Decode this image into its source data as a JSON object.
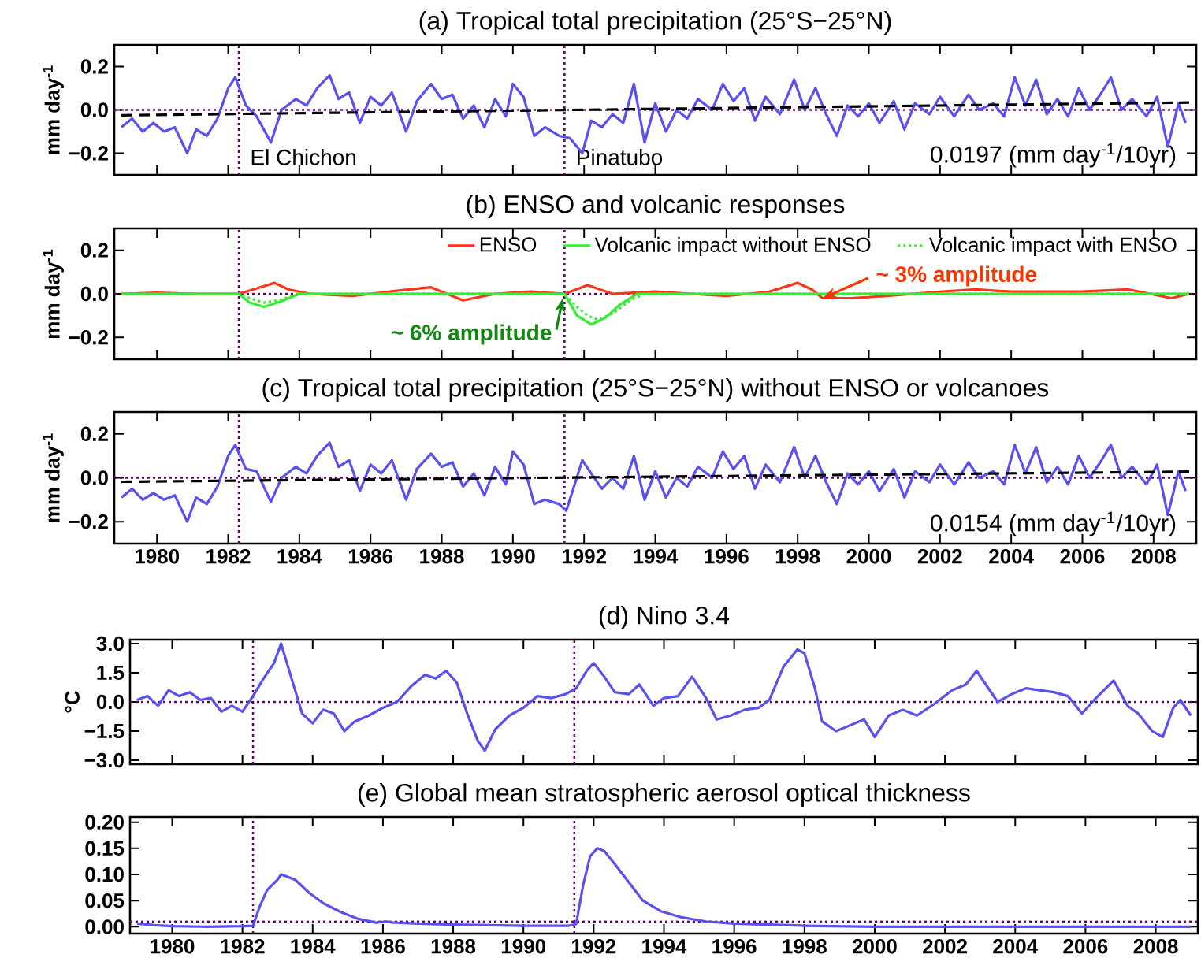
{
  "chart_data": [
    {
      "type": "line",
      "title": "(a) Tropical total precipitation (25°S−25°N)",
      "ylabel": "mm day$^{-1}$",
      "xlim": [
        1978.8,
        2009.2
      ],
      "ylim": [
        -0.3,
        0.3
      ],
      "xticks": [
        1980,
        1982,
        1984,
        1986,
        1988,
        1990,
        1992,
        1994,
        1996,
        1998,
        2000,
        2002,
        2004,
        2006,
        2008
      ],
      "yticks": [
        {
          "value": -0.2,
          "label": "−0.2"
        },
        {
          "value": 0,
          "label": "0.0"
        },
        {
          "value": 0.2,
          "label": "0.2"
        }
      ],
      "tick_labels": "y",
      "series": [
        {
          "color": "#5a50f0",
          "x": [
            1979.0,
            1979.3,
            1979.6,
            1979.9,
            1980.2,
            1980.5,
            1980.85,
            1981.1,
            1981.4,
            1981.7,
            1982.0,
            1982.2,
            1982.5,
            1982.8,
            1983.2,
            1983.5,
            1983.9,
            1984.2,
            1984.5,
            1984.85,
            1985.1,
            1985.4,
            1985.7,
            1986.0,
            1986.3,
            1986.6,
            1987.0,
            1987.3,
            1987.7,
            1988.0,
            1988.3,
            1988.6,
            1988.9,
            1989.2,
            1989.5,
            1989.8,
            1990.0,
            1990.3,
            1990.6,
            1990.9,
            1991.3,
            1991.6,
            1991.95,
            1992.2,
            1992.5,
            1992.8,
            1993.1,
            1993.4,
            1993.7,
            1994.0,
            1994.3,
            1994.6,
            1994.9,
            1995.2,
            1995.6,
            1995.9,
            1996.2,
            1996.5,
            1996.8,
            1997.1,
            1997.5,
            1997.9,
            1998.2,
            1998.5,
            1998.8,
            1999.1,
            1999.4,
            1999.7,
            2000.0,
            2000.3,
            2000.7,
            2001.0,
            2001.3,
            2001.7,
            2002.0,
            2002.4,
            2002.8,
            2003.1,
            2003.5,
            2003.8,
            2004.1,
            2004.4,
            2004.7,
            2005.0,
            2005.3,
            2005.6,
            2005.9,
            2006.2,
            2006.5,
            2006.8,
            2007.1,
            2007.4,
            2007.8,
            2008.1,
            2008.4,
            2008.7,
            2008.9
          ],
          "values": [
            -0.08,
            -0.04,
            -0.1,
            -0.06,
            -0.1,
            -0.08,
            -0.2,
            -0.09,
            -0.12,
            -0.04,
            0.1,
            0.15,
            0.02,
            -0.03,
            -0.15,
            0.0,
            0.05,
            0.02,
            0.1,
            0.16,
            0.05,
            0.08,
            -0.06,
            0.06,
            0.02,
            0.08,
            -0.1,
            0.04,
            0.12,
            0.05,
            0.07,
            -0.04,
            0.02,
            -0.08,
            0.05,
            -0.03,
            0.12,
            0.06,
            -0.12,
            -0.08,
            -0.12,
            -0.13,
            -0.2,
            -0.05,
            -0.08,
            -0.02,
            -0.06,
            0.12,
            -0.15,
            0.03,
            -0.1,
            0.0,
            -0.04,
            0.05,
            0.0,
            0.12,
            0.04,
            0.1,
            -0.05,
            0.06,
            -0.02,
            0.14,
            0.0,
            0.1,
            -0.02,
            -0.12,
            0.02,
            -0.03,
            0.03,
            -0.06,
            0.04,
            -0.09,
            0.03,
            -0.02,
            0.06,
            -0.03,
            0.07,
            0.0,
            0.03,
            -0.03,
            0.15,
            0.02,
            0.14,
            -0.02,
            0.05,
            -0.03,
            0.1,
            0.0,
            0.07,
            0.15,
            0.0,
            0.05,
            -0.03,
            0.06,
            -0.17,
            0.03,
            -0.06
          ]
        },
        {
          "type": "line",
          "color": "#000000",
          "line_style": "dashed",
          "x": [
            1979,
            2009
          ],
          "values": [
            -0.025,
            0.034
          ]
        }
      ],
      "ref_lines": [
        {
          "axis": "x",
          "value": 1982.3,
          "label": "El Chichon",
          "color": "#660066",
          "line_style": "dotted"
        },
        {
          "axis": "x",
          "value": 1991.45,
          "label": "Pinatubo",
          "color": "#660066",
          "line_style": "dotted"
        },
        {
          "axis": "y",
          "value": 0,
          "color": "#660066",
          "line_style": "dotted"
        }
      ],
      "annotations": [
        "0.0197 (mm day$^{-1}$/10yr)"
      ]
    },
    {
      "type": "line",
      "title": "(b) ENSO and volcanic responses",
      "ylabel": "mm day$^{-1}$",
      "xlim": [
        1978.8,
        2009.2
      ],
      "ylim": [
        -0.3,
        0.3
      ],
      "xticks": [
        1980,
        1982,
        1984,
        1986,
        1988,
        1990,
        1992,
        1994,
        1996,
        1998,
        2000,
        2002,
        2004,
        2006,
        2008
      ],
      "yticks": [
        {
          "value": -0.2,
          "label": "−0.2"
        },
        {
          "value": 0,
          "label": "0.0"
        },
        {
          "value": 0.2,
          "label": "0.2"
        }
      ],
      "tick_labels": "y",
      "legend": "top right",
      "series": [
        {
          "name": "ENSO",
          "color": "#ff3319",
          "line_style": "solid",
          "x": [
            1979,
            1980,
            1981,
            1982.3,
            1982.9,
            1983.3,
            1983.7,
            1984.3,
            1985.5,
            1986.5,
            1987.7,
            1988.6,
            1989.5,
            1990.5,
            1991.45,
            1992.1,
            1992.8,
            1994.0,
            1995.0,
            1996.0,
            1997.2,
            1998.0,
            1998.4,
            1998.7,
            1999.5,
            2000.5,
            2002.0,
            2003.0,
            2004.0,
            2005.0,
            2006.0,
            2007.3,
            2008.5,
            2009.0
          ],
          "values": [
            0,
            0.005,
            0,
            0,
            0.03,
            0.05,
            0.02,
            0,
            -0.01,
            0.01,
            0.03,
            -0.03,
            0,
            0.01,
            0,
            0.04,
            0,
            0.01,
            0,
            -0.01,
            0.01,
            0.05,
            0.02,
            -0.02,
            -0.02,
            -0.01,
            0.01,
            0.02,
            0.01,
            0.01,
            0.01,
            0.02,
            -0.02,
            0
          ]
        },
        {
          "name": "Volcanic impact without ENSO",
          "color": "#33ee33",
          "line_style": "solid",
          "x": [
            1979,
            1982.3,
            1982.6,
            1983.0,
            1983.4,
            1984.0,
            1991.45,
            1991.8,
            1992.2,
            1992.6,
            1993.0,
            1993.5,
            2009
          ],
          "values": [
            0,
            0,
            -0.04,
            -0.06,
            -0.04,
            0,
            0,
            -0.1,
            -0.14,
            -0.11,
            -0.05,
            0,
            0
          ]
        },
        {
          "name": "Volcanic impact with ENSO",
          "color": "#33ee33",
          "line_style": "dotted",
          "x": [
            1979,
            1982.3,
            1982.6,
            1983.0,
            1983.4,
            1984.0,
            1991.45,
            1991.8,
            1992.1,
            1992.4,
            1992.8,
            1993.3,
            1993.7,
            2009
          ],
          "values": [
            0,
            0,
            -0.02,
            -0.04,
            -0.03,
            0,
            0,
            -0.06,
            -0.1,
            -0.12,
            -0.09,
            -0.03,
            0,
            0
          ]
        }
      ],
      "ref_lines": [
        {
          "axis": "x",
          "value": 1982.3,
          "color": "#660066",
          "line_style": "dotted"
        },
        {
          "axis": "x",
          "value": 1991.45,
          "color": "#660066",
          "line_style": "dotted"
        },
        {
          "axis": "y",
          "value": 0,
          "color": "#660066",
          "line_style": "dotted"
        }
      ],
      "annotations": [
        {
          "text": "~ 6% amplitude",
          "x": 1991.4,
          "y": -0.02
        },
        {
          "text": "~ 3% amplitude",
          "x": 1998.7,
          "y": -0.02
        }
      ]
    },
    {
      "type": "line",
      "title": "(c) Tropical total precipitation (25°S−25°N) without ENSO or volcanoes",
      "ylabel": "mm day$^{-1}$",
      "xlim": [
        1978.8,
        2009.2
      ],
      "ylim": [
        -0.3,
        0.3
      ],
      "xticks": [
        1980,
        1982,
        1984,
        1986,
        1988,
        1990,
        1992,
        1994,
        1996,
        1998,
        2000,
        2002,
        2004,
        2006,
        2008
      ],
      "yticks": [
        {
          "value": -0.2,
          "label": "−0.2"
        },
        {
          "value": 0,
          "label": "0.0"
        },
        {
          "value": 0.2,
          "label": "0.2"
        }
      ],
      "series": [
        {
          "color": "#5a50f0",
          "x": [
            1979.0,
            1979.3,
            1979.6,
            1979.9,
            1980.2,
            1980.5,
            1980.85,
            1981.1,
            1981.4,
            1981.7,
            1982.0,
            1982.2,
            1982.5,
            1982.8,
            1983.2,
            1983.5,
            1983.9,
            1984.2,
            1984.5,
            1984.85,
            1985.1,
            1985.4,
            1985.7,
            1986.0,
            1986.3,
            1986.6,
            1987.0,
            1987.3,
            1987.7,
            1988.0,
            1988.3,
            1988.6,
            1988.9,
            1989.2,
            1989.5,
            1989.8,
            1990.0,
            1990.3,
            1990.6,
            1990.9,
            1991.3,
            1991.5,
            1991.95,
            1992.2,
            1992.5,
            1992.8,
            1993.1,
            1993.4,
            1993.7,
            1994.0,
            1994.3,
            1994.6,
            1994.9,
            1995.2,
            1995.6,
            1995.9,
            1996.2,
            1996.5,
            1996.8,
            1997.1,
            1997.5,
            1997.9,
            1998.2,
            1998.5,
            1998.8,
            1999.1,
            1999.4,
            1999.7,
            2000.0,
            2000.3,
            2000.7,
            2001.0,
            2001.3,
            2001.7,
            2002.0,
            2002.4,
            2002.8,
            2003.1,
            2003.5,
            2003.8,
            2004.1,
            2004.4,
            2004.7,
            2005.0,
            2005.3,
            2005.6,
            2005.9,
            2006.2,
            2006.5,
            2006.8,
            2007.1,
            2007.4,
            2007.8,
            2008.1,
            2008.4,
            2008.7,
            2008.9
          ],
          "values": [
            -0.09,
            -0.05,
            -0.1,
            -0.07,
            -0.1,
            -0.08,
            -0.2,
            -0.09,
            -0.12,
            -0.04,
            0.1,
            0.15,
            0.04,
            0.03,
            -0.11,
            0.0,
            0.05,
            0.02,
            0.1,
            0.16,
            0.05,
            0.08,
            -0.06,
            0.06,
            0.02,
            0.08,
            -0.1,
            0.04,
            0.11,
            0.05,
            0.07,
            -0.04,
            0.02,
            -0.08,
            0.05,
            -0.03,
            0.12,
            0.06,
            -0.12,
            -0.1,
            -0.12,
            -0.15,
            0.08,
            0.02,
            -0.05,
            0.0,
            -0.05,
            0.1,
            -0.1,
            0.03,
            -0.09,
            0.0,
            -0.04,
            0.05,
            0.0,
            0.12,
            0.04,
            0.1,
            -0.05,
            0.06,
            -0.02,
            0.14,
            0.0,
            0.1,
            -0.02,
            -0.12,
            0.02,
            -0.03,
            0.03,
            -0.06,
            0.04,
            -0.09,
            0.03,
            -0.02,
            0.06,
            -0.03,
            0.07,
            0.0,
            0.03,
            -0.03,
            0.15,
            0.02,
            0.14,
            -0.02,
            0.05,
            -0.03,
            0.1,
            0.0,
            0.07,
            0.15,
            0.0,
            0.05,
            -0.03,
            0.06,
            -0.17,
            0.03,
            -0.06
          ]
        },
        {
          "type": "line",
          "color": "#000000",
          "line_style": "dashed",
          "x": [
            1979,
            2009
          ],
          "values": [
            -0.018,
            0.028
          ]
        }
      ],
      "ref_lines": [
        {
          "axis": "x",
          "value": 1982.3,
          "color": "#660066",
          "line_style": "dotted"
        },
        {
          "axis": "x",
          "value": 1991.45,
          "color": "#660066",
          "line_style": "dotted"
        },
        {
          "axis": "y",
          "value": 0,
          "color": "#660066",
          "line_style": "dotted"
        }
      ],
      "annotations": [
        "0.0154 (mm day$^{-1}$/10yr)"
      ]
    },
    {
      "type": "line",
      "title": "(d) Nino 3.4",
      "ylabel": "°C",
      "xlim": [
        1978.8,
        2009.2
      ],
      "ylim": [
        -3.2,
        3.2
      ],
      "xticks": [
        1980,
        1982,
        1984,
        1986,
        1988,
        1990,
        1992,
        1994,
        1996,
        1998,
        2000,
        2002,
        2004,
        2006,
        2008
      ],
      "yticks": [
        {
          "value": -3,
          "label": "−3.0"
        },
        {
          "value": -1.5,
          "label": "−1.5"
        },
        {
          "value": 0,
          "label": "0.0"
        },
        {
          "value": 1.5,
          "label": "1.5"
        },
        {
          "value": 3,
          "label": "3.0"
        }
      ],
      "tick_labels": "y",
      "series": [
        {
          "color": "#5a50f0",
          "x": [
            1979.0,
            1979.3,
            1979.6,
            1979.9,
            1980.2,
            1980.5,
            1980.8,
            1981.1,
            1981.4,
            1981.7,
            1982.0,
            1982.3,
            1982.6,
            1982.9,
            1983.1,
            1983.4,
            1983.7,
            1984.0,
            1984.3,
            1984.6,
            1984.9,
            1985.2,
            1985.6,
            1986.0,
            1986.4,
            1986.8,
            1987.2,
            1987.5,
            1987.8,
            1988.1,
            1988.4,
            1988.7,
            1988.9,
            1989.2,
            1989.6,
            1990.0,
            1990.4,
            1990.8,
            1991.2,
            1991.5,
            1991.8,
            1992.0,
            1992.3,
            1992.6,
            1993.0,
            1993.3,
            1993.7,
            1994.0,
            1994.4,
            1994.8,
            1995.2,
            1995.5,
            1995.9,
            1996.3,
            1996.7,
            1997.0,
            1997.4,
            1997.8,
            1998.0,
            1998.3,
            1998.5,
            1998.9,
            1999.3,
            1999.7,
            2000.0,
            2000.4,
            2000.8,
            2001.2,
            2001.7,
            2002.2,
            2002.6,
            2002.9,
            2003.2,
            2003.5,
            2003.9,
            2004.3,
            2004.7,
            2005.1,
            2005.5,
            2005.9,
            2006.3,
            2006.8,
            2007.2,
            2007.5,
            2007.9,
            2008.2,
            2008.5,
            2008.7,
            2009.0
          ],
          "values": [
            0.1,
            0.3,
            -0.2,
            0.6,
            0.3,
            0.5,
            0.1,
            0.2,
            -0.5,
            -0.2,
            -0.5,
            0.3,
            1.2,
            2.0,
            3.0,
            1.2,
            -0.6,
            -1.1,
            -0.4,
            -0.6,
            -1.5,
            -1.0,
            -0.7,
            -0.3,
            0.0,
            0.8,
            1.4,
            1.2,
            1.6,
            1.0,
            -0.6,
            -2.0,
            -2.5,
            -1.4,
            -0.7,
            -0.3,
            0.3,
            0.2,
            0.4,
            0.7,
            1.6,
            2.0,
            1.3,
            0.5,
            0.4,
            0.9,
            -0.2,
            0.2,
            0.3,
            1.3,
            0.2,
            -0.9,
            -0.7,
            -0.4,
            -0.3,
            0.1,
            1.8,
            2.7,
            2.5,
            0.7,
            -1.0,
            -1.5,
            -1.2,
            -0.9,
            -1.8,
            -0.7,
            -0.4,
            -0.7,
            -0.1,
            0.6,
            0.9,
            1.6,
            0.8,
            0.0,
            0.4,
            0.7,
            0.6,
            0.5,
            0.3,
            -0.6,
            0.2,
            1.1,
            -0.2,
            -0.6,
            -1.5,
            -1.8,
            -0.3,
            0.1,
            -0.7
          ]
        }
      ],
      "ref_lines": [
        {
          "axis": "x",
          "value": 1982.3,
          "color": "#660066",
          "line_style": "dotted"
        },
        {
          "axis": "x",
          "value": 1991.45,
          "color": "#660066",
          "line_style": "dotted"
        },
        {
          "axis": "y",
          "value": 0,
          "color": "#660066",
          "line_style": "dotted"
        }
      ]
    },
    {
      "type": "line",
      "title": "(e) Global mean stratospheric aerosol optical thickness",
      "xlim": [
        1978.8,
        2009.2
      ],
      "ylim": [
        -0.013,
        0.21
      ],
      "xticks": [
        1980,
        1982,
        1984,
        1986,
        1988,
        1990,
        1992,
        1994,
        1996,
        1998,
        2000,
        2002,
        2004,
        2006,
        2008
      ],
      "yticks": [
        {
          "value": 0,
          "label": "0.00"
        },
        {
          "value": 0.05,
          "label": "0.05"
        },
        {
          "value": 0.1,
          "label": "0.10"
        },
        {
          "value": 0.15,
          "label": "0.15"
        },
        {
          "value": 0.2,
          "label": "0.20"
        }
      ],
      "series": [
        {
          "color": "#5a50f0",
          "x": [
            1979.0,
            1979.5,
            1980.0,
            1981.0,
            1982.0,
            1982.3,
            1982.5,
            1982.7,
            1983.0,
            1983.1,
            1983.3,
            1983.5,
            1983.9,
            1984.3,
            1984.8,
            1985.3,
            1985.8,
            1986.1,
            1986.3,
            1987.0,
            1988.0,
            1989.0,
            1990.0,
            1991.3,
            1991.5,
            1991.7,
            1991.9,
            1992.1,
            1992.3,
            1992.6,
            1993.0,
            1993.4,
            1993.9,
            1994.5,
            1995.2,
            1996.0,
            1997.0,
            1998.0,
            2000.0,
            2003.0,
            2006.0,
            2009.0
          ],
          "values": [
            0.006,
            0.003,
            0.001,
            0,
            0.001,
            0.002,
            0.04,
            0.07,
            0.09,
            0.1,
            0.095,
            0.09,
            0.065,
            0.045,
            0.028,
            0.015,
            0.008,
            0.01,
            0.008,
            0.006,
            0.004,
            0.003,
            0.002,
            0.002,
            0.005,
            0.08,
            0.135,
            0.15,
            0.145,
            0.12,
            0.085,
            0.05,
            0.03,
            0.018,
            0.01,
            0.006,
            0.004,
            0.002,
            0,
            0,
            0,
            0
          ]
        }
      ],
      "ref_lines": [
        {
          "axis": "x",
          "value": 1982.3,
          "color": "#660066",
          "line_style": "dotted"
        },
        {
          "axis": "x",
          "value": 1991.45,
          "color": "#660066",
          "line_style": "dotted"
        },
        {
          "axis": "y",
          "value": 0.01,
          "color": "#660066",
          "line_style": "dotted"
        }
      ]
    }
  ]
}
